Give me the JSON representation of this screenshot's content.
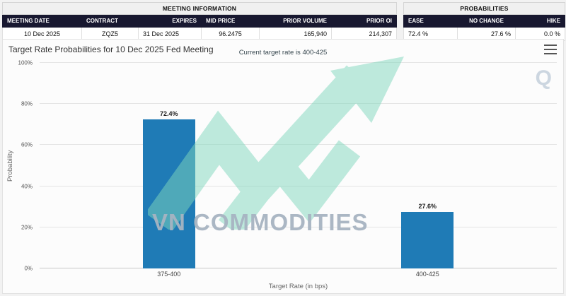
{
  "meeting_info": {
    "title": "MEETING INFORMATION",
    "headers": [
      "MEETING DATE",
      "CONTRACT",
      "EXPIRES",
      "MID PRICE",
      "PRIOR VOLUME",
      "PRIOR OI"
    ],
    "values": [
      "10 Dec 2025",
      "ZQZ5",
      "31 Dec 2025",
      "96.2475",
      "165,940",
      "214,307"
    ]
  },
  "probabilities": {
    "title": "PROBABILITIES",
    "headers": [
      "EASE",
      "NO CHANGE",
      "HIKE"
    ],
    "values": [
      "72.4 %",
      "27.6 %",
      "0.0 %"
    ]
  },
  "chart": {
    "title": "Target Rate Probabilities for 10 Dec 2025 Fed Meeting",
    "subtitle": "Current target rate is 400-425"
  },
  "watermark": {
    "text": "VN COMMODITIES",
    "q": "Q",
    "arrow_color": "#7fd8bd"
  },
  "chart_data": {
    "type": "bar",
    "categories": [
      "375-400",
      "400-425"
    ],
    "values": [
      72.4,
      27.6
    ],
    "data_labels": [
      "72.4%",
      "27.6%"
    ],
    "title": "Target Rate Probabilities for 10 Dec 2025 Fed Meeting",
    "subtitle": "Current target rate is 400-425",
    "xlabel": "Target Rate (in bps)",
    "ylabel": "Probability",
    "ylim": [
      0,
      100
    ],
    "yticks": [
      "0%",
      "20%",
      "40%",
      "60%",
      "80%",
      "100%"
    ],
    "bar_color": "#1f7bb6",
    "grid": true,
    "legend": false
  }
}
